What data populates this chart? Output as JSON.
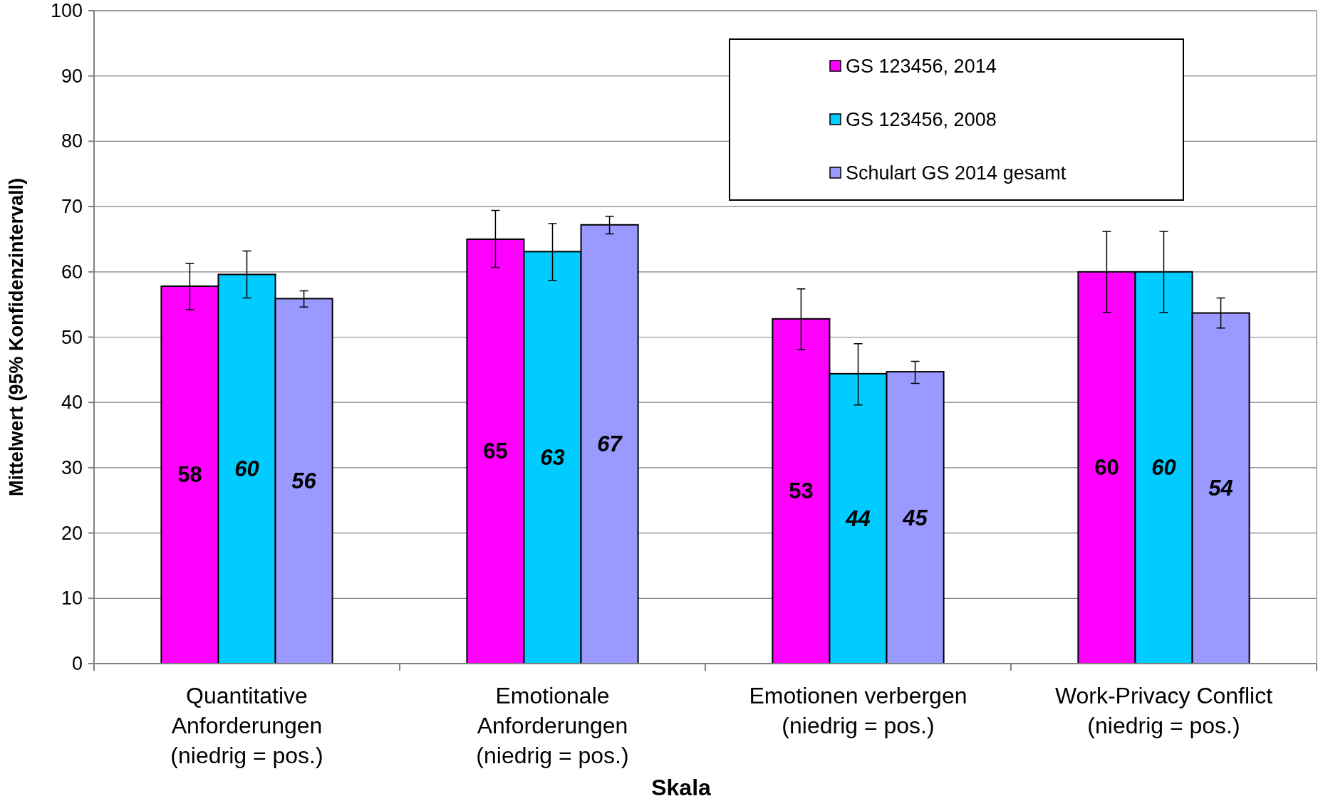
{
  "chart_data": {
    "type": "bar",
    "xlabel": "Skala",
    "ylabel": "Mittelwert (95% Konfidenzintervall)",
    "categories": [
      "Quantitative\nAnforderungen\n(niedrig = pos.)",
      "Emotionale\nAnforderungen\n(niedrig = pos.)",
      "Emotionen verbergen\n(niedrig = pos.)",
      "Work-Privacy Conflict\n(niedrig = pos.)"
    ],
    "series": [
      {
        "name": "GS 123456, 2014",
        "color": "#ff00ff",
        "values": [
          57.8,
          65.0,
          52.8,
          60.0
        ],
        "errors": [
          [
            54.2,
            61.3
          ],
          [
            60.7,
            69.4
          ],
          [
            48.1,
            57.4
          ],
          [
            53.8,
            66.2
          ]
        ],
        "value_labels": [
          "58",
          "65",
          "53",
          "60"
        ]
      },
      {
        "name": "GS 123456, 2008",
        "color": "#00ccff",
        "values": [
          59.6,
          63.1,
          44.4,
          60.0
        ],
        "errors": [
          [
            56.0,
            63.2
          ],
          [
            58.7,
            67.4
          ],
          [
            39.6,
            49.0
          ],
          [
            53.8,
            66.2
          ]
        ],
        "value_labels": [
          "60",
          "63",
          "44",
          "60"
        ]
      },
      {
        "name": "Schulart GS 2014 gesamt",
        "color": "#9999ff",
        "values": [
          55.9,
          67.2,
          44.7,
          53.7
        ],
        "errors": [
          [
            54.6,
            57.1
          ],
          [
            65.8,
            68.5
          ],
          [
            42.9,
            46.3
          ],
          [
            51.4,
            56.0
          ]
        ],
        "value_labels": [
          "56",
          "67",
          "45",
          "54"
        ]
      }
    ],
    "ylim": [
      0,
      100
    ],
    "yticks": [
      0,
      10,
      20,
      30,
      40,
      50,
      60,
      70,
      80,
      90,
      100
    ],
    "grid": "y",
    "legend": "top right"
  }
}
